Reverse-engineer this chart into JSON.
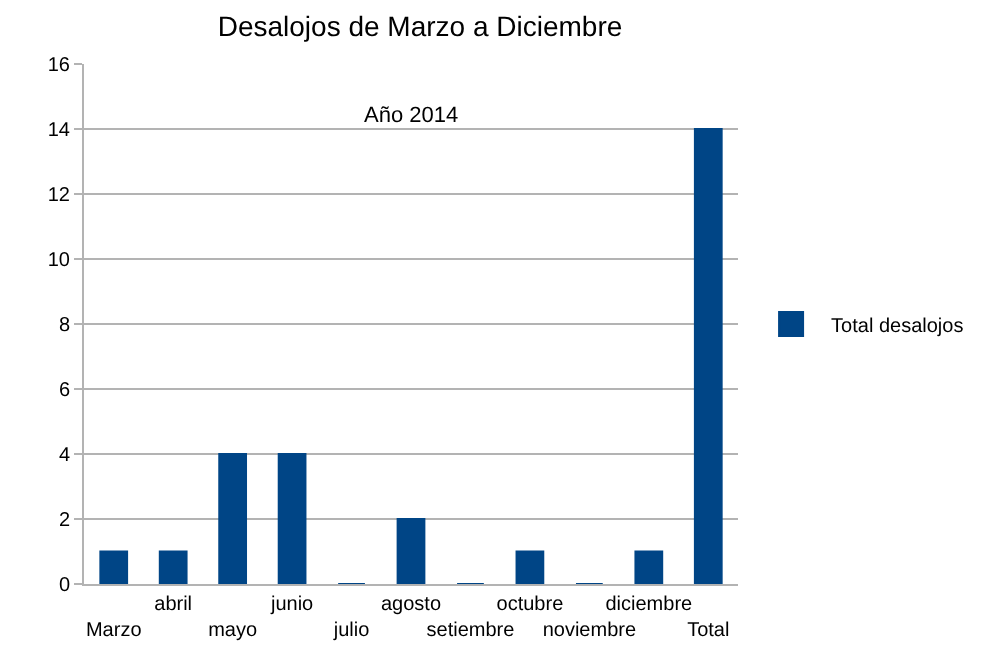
{
  "chart_data": {
    "type": "bar",
    "title": "Desalojos de Marzo a Diciembre",
    "annotations": [
      "Año 2014"
    ],
    "categories": [
      "Marzo",
      "abril",
      "mayo",
      "junio",
      "julio",
      "agosto",
      "setiembre",
      "octubre",
      "noviembre",
      "diciembre",
      "Total"
    ],
    "series": [
      {
        "name": "Total desalojos",
        "color": "#004586",
        "values": [
          1,
          1,
          4,
          4,
          0,
          2,
          0,
          1,
          0,
          1,
          14
        ]
      }
    ],
    "ylim": [
      0,
      16
    ],
    "yticks": [
      0,
      2,
      4,
      6,
      8,
      10,
      12,
      14,
      16
    ],
    "grid": "y",
    "legend": "right"
  }
}
